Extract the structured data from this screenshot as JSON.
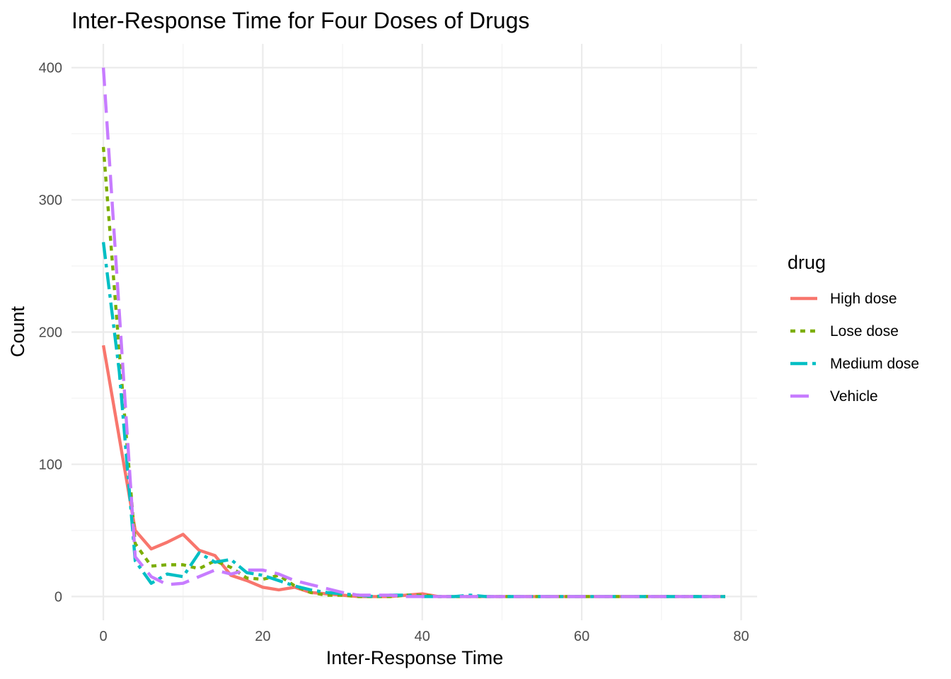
{
  "chart_data": {
    "type": "line",
    "title": "Inter-Response Time for Four Doses of Drugs",
    "xlabel": "Inter-Response Time",
    "ylabel": "Count",
    "xlim": [
      -4,
      82
    ],
    "ylim": [
      -18,
      418
    ],
    "x_ticks": [
      0,
      20,
      40,
      60,
      80
    ],
    "x_tick_labels": [
      "0",
      "20",
      "40",
      "60",
      "80"
    ],
    "y_ticks": [
      0,
      100,
      200,
      300,
      400
    ],
    "y_tick_labels": [
      "0",
      "100",
      "200",
      "300",
      "400"
    ],
    "grid": true,
    "legend": {
      "title": "drug",
      "position": "right"
    },
    "x": [
      0,
      2,
      4,
      6,
      8,
      10,
      12,
      14,
      16,
      18,
      20,
      22,
      24,
      26,
      28,
      30,
      32,
      34,
      36,
      38,
      40,
      42,
      44,
      46,
      48,
      50,
      52,
      54,
      56,
      58,
      60,
      62,
      64,
      66,
      68,
      70,
      72,
      74,
      76,
      78
    ],
    "series": [
      {
        "name": "High dose",
        "color": "#F8766D",
        "dash": "solid",
        "values": [
          190,
          120,
          50,
          36,
          41,
          47,
          35,
          31,
          16,
          12,
          7,
          5,
          7,
          3,
          2,
          1,
          0,
          0,
          0,
          1,
          2,
          0,
          0,
          0,
          0,
          0,
          0,
          0,
          0,
          0,
          0,
          0,
          0,
          0,
          0,
          0,
          0,
          0,
          0,
          0
        ]
      },
      {
        "name": "Lose dose",
        "color": "#7CAE00",
        "dash": "dotted",
        "values": [
          340,
          185,
          40,
          23,
          24,
          24,
          21,
          27,
          22,
          14,
          13,
          16,
          8,
          3,
          1,
          1,
          0,
          0,
          0,
          1,
          1,
          0,
          0,
          0,
          0,
          0,
          0,
          0,
          0,
          0,
          0,
          0,
          0,
          0,
          0,
          0,
          0,
          0,
          0,
          0
        ]
      },
      {
        "name": "Medium dose",
        "color": "#00BFC4",
        "dash": "dashdot",
        "values": [
          268,
          170,
          27,
          10,
          17,
          15,
          33,
          26,
          28,
          18,
          16,
          12,
          8,
          5,
          3,
          2,
          1,
          0,
          1,
          1,
          0,
          0,
          0,
          1,
          0,
          0,
          0,
          0,
          0,
          0,
          0,
          0,
          0,
          0,
          0,
          0,
          0,
          0,
          0,
          0
        ]
      },
      {
        "name": "Vehicle",
        "color": "#C77CFF",
        "dash": "longdash",
        "values": [
          400,
          215,
          30,
          15,
          9,
          10,
          15,
          20,
          17,
          20,
          20,
          17,
          12,
          9,
          6,
          3,
          1,
          1,
          1,
          0,
          0,
          0,
          0,
          0,
          0,
          0,
          0,
          0,
          0,
          0,
          0,
          0,
          0,
          0,
          0,
          0,
          0,
          0,
          0,
          0
        ]
      }
    ]
  }
}
